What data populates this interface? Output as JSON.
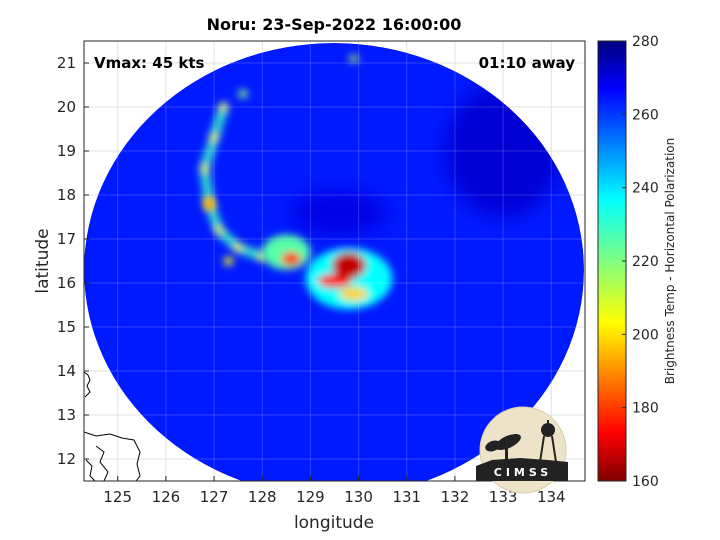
{
  "chart_data": {
    "type": "heatmap",
    "title": "Noru: 23-Sep-2022 16:00:00",
    "xlabel": "longitude",
    "ylabel": "latitude",
    "xlim": [
      124.3,
      134.7
    ],
    "ylim": [
      11.5,
      21.5
    ],
    "xticks": [
      125,
      126,
      127,
      128,
      129,
      130,
      131,
      132,
      133,
      134
    ],
    "yticks": [
      12,
      13,
      14,
      15,
      16,
      17,
      18,
      19,
      20,
      21
    ],
    "grid": true,
    "colorbar": {
      "label": "Brightness Temp - Horizontal Polarization",
      "range": [
        160,
        280
      ],
      "ticks": [
        160,
        180,
        200,
        220,
        240,
        260,
        280
      ],
      "colormap": "jet"
    },
    "annotations": {
      "vmax": "Vmax: 45 kts",
      "time_offset": "01:10 away"
    },
    "swath": {
      "center_lon": 129.2,
      "center_lat": 16.9,
      "background_temp": 262
    },
    "storm_center": {
      "lon": 129.6,
      "lat": 16.2
    },
    "cold_features": [
      {
        "lon": 129.8,
        "lat": 16.4,
        "temp": 168,
        "r_lon": 0.35,
        "r_lat": 0.3
      },
      {
        "lon": 129.5,
        "lat": 16.05,
        "temp": 175,
        "r_lon": 0.35,
        "r_lat": 0.15
      },
      {
        "lon": 128.6,
        "lat": 16.55,
        "temp": 178,
        "r_lon": 0.2,
        "r_lat": 0.15
      },
      {
        "lon": 129.9,
        "lat": 15.75,
        "temp": 200,
        "r_lon": 0.3,
        "r_lat": 0.15
      },
      {
        "lon": 128.5,
        "lat": 16.7,
        "temp": 225,
        "r_lon": 0.5,
        "r_lat": 0.4
      },
      {
        "lon": 129.8,
        "lat": 16.1,
        "temp": 235,
        "r_lon": 0.9,
        "r_lat": 0.7
      },
      {
        "lon": 126.9,
        "lat": 17.8,
        "temp": 195,
        "r_lon": 0.12,
        "r_lat": 0.15
      },
      {
        "lon": 127.3,
        "lat": 16.5,
        "temp": 205,
        "r_lon": 0.1,
        "r_lat": 0.1
      },
      {
        "lon": 129.9,
        "lat": 21.1,
        "temp": 215,
        "r_lon": 0.1,
        "r_lat": 0.08
      },
      {
        "lon": 127.6,
        "lat": 20.3,
        "temp": 220,
        "r_lon": 0.1,
        "r_lat": 0.1
      }
    ],
    "rainband_points": [
      {
        "lon": 127.2,
        "lat": 20.0
      },
      {
        "lon": 127.0,
        "lat": 19.3
      },
      {
        "lon": 126.8,
        "lat": 18.6
      },
      {
        "lon": 126.9,
        "lat": 17.8
      },
      {
        "lon": 127.1,
        "lat": 17.2
      },
      {
        "lon": 127.5,
        "lat": 16.8
      },
      {
        "lon": 128.0,
        "lat": 16.6
      }
    ],
    "warm_regions": [
      {
        "lon": 129.6,
        "lat": 17.6,
        "temp": 268,
        "r_lon": 1.0,
        "r_lat": 0.5
      },
      {
        "lon": 133.0,
        "lat": 19.0,
        "temp": 270,
        "r_lon": 1.2,
        "r_lat": 1.5
      }
    ]
  },
  "logo": {
    "text": "CIMSS"
  }
}
